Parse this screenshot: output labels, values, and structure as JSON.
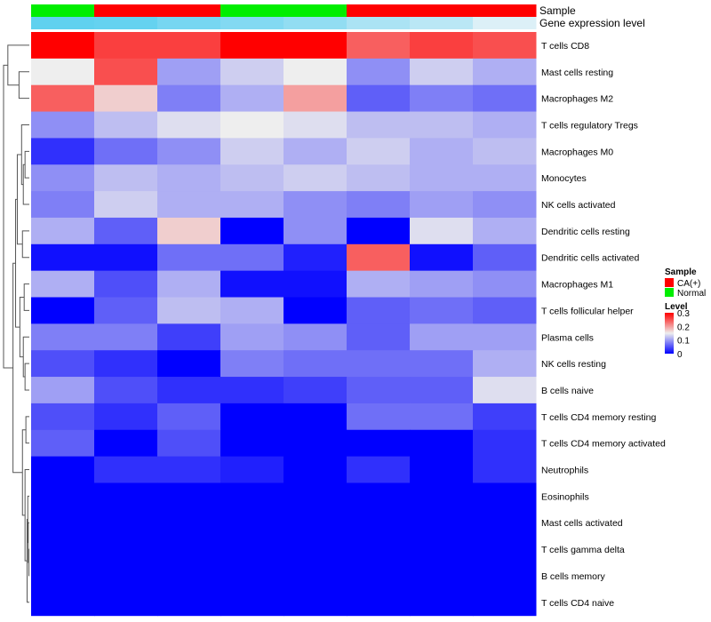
{
  "chart_data": {
    "type": "heatmap",
    "title": "",
    "annotation_tracks": [
      "Sample",
      "Gene expression level"
    ],
    "sample_groups": [
      "Normal",
      "CA(+)",
      "CA(+)",
      "Normal",
      "Normal",
      "CA(+)",
      "CA(+)",
      "CA(+)"
    ],
    "gene_expression_levels": [
      0.95,
      0.92,
      0.8,
      0.72,
      0.62,
      0.45,
      0.35,
      0.12
    ],
    "rows": [
      "T cells CD8",
      "Mast cells resting",
      "Macrophages M2",
      "T cells regulatory  Tregs",
      "Macrophages M0",
      "Monocytes",
      "NK cells activated",
      "Dendritic cells resting",
      "Dendritic cells activated",
      "Macrophages M1",
      "T cells follicular helper",
      "Plasma cells",
      "NK cells resting",
      "B cells naive",
      "T cells CD4 memory resting",
      "T cells CD4 memory activated",
      "Neutrophils",
      "Eosinophils",
      "Mast cells activated",
      "T cells gamma delta",
      "B cells memory",
      "T cells CD4 naive"
    ],
    "values": [
      [
        0.3,
        0.26,
        0.26,
        0.3,
        0.3,
        0.24,
        0.26,
        0.25
      ],
      [
        0.15,
        0.25,
        0.1,
        0.13,
        0.15,
        0.09,
        0.13,
        0.11
      ],
      [
        0.24,
        0.17,
        0.08,
        0.11,
        0.2,
        0.06,
        0.08,
        0.07
      ],
      [
        0.09,
        0.12,
        0.14,
        0.15,
        0.14,
        0.12,
        0.12,
        0.11
      ],
      [
        0.03,
        0.07,
        0.09,
        0.13,
        0.11,
        0.13,
        0.11,
        0.12
      ],
      [
        0.09,
        0.12,
        0.11,
        0.12,
        0.13,
        0.12,
        0.11,
        0.11
      ],
      [
        0.08,
        0.13,
        0.11,
        0.11,
        0.09,
        0.08,
        0.1,
        0.09
      ],
      [
        0.11,
        0.06,
        0.17,
        0.0,
        0.09,
        0.0,
        0.14,
        0.11
      ],
      [
        0.01,
        0.01,
        0.07,
        0.07,
        0.02,
        0.24,
        0.01,
        0.06
      ],
      [
        0.11,
        0.05,
        0.11,
        0.01,
        0.01,
        0.11,
        0.1,
        0.09
      ],
      [
        0.0,
        0.06,
        0.12,
        0.11,
        0.0,
        0.06,
        0.07,
        0.06
      ],
      [
        0.08,
        0.08,
        0.04,
        0.1,
        0.09,
        0.06,
        0.1,
        0.1
      ],
      [
        0.05,
        0.03,
        0.0,
        0.08,
        0.07,
        0.07,
        0.07,
        0.11
      ],
      [
        0.1,
        0.05,
        0.03,
        0.03,
        0.04,
        0.06,
        0.06,
        0.14
      ],
      [
        0.05,
        0.03,
        0.06,
        0.0,
        0.0,
        0.07,
        0.07,
        0.04
      ],
      [
        0.06,
        0.0,
        0.05,
        0.0,
        0.0,
        0.0,
        0.0,
        0.03
      ],
      [
        0.0,
        0.03,
        0.03,
        0.02,
        0.0,
        0.03,
        0.0,
        0.03
      ],
      [
        0.0,
        0.0,
        0.0,
        0.0,
        0.0,
        0.0,
        0.0,
        0.0
      ],
      [
        0.0,
        0.0,
        0.0,
        0.0,
        0.0,
        0.0,
        0.0,
        0.0
      ],
      [
        0.0,
        0.0,
        0.0,
        0.0,
        0.0,
        0.0,
        0.0,
        0.0
      ],
      [
        0.0,
        0.0,
        0.0,
        0.0,
        0.0,
        0.0,
        0.0,
        0.0
      ],
      [
        0.0,
        0.0,
        0.0,
        0.0,
        0.0,
        0.0,
        0.0,
        0.0
      ]
    ],
    "value_range": [
      0,
      0.3
    ],
    "colors": {
      "low": "#0000ff",
      "mid": "#eeeeee",
      "high": "#ff0000",
      "CA(+)": "#ff0000",
      "Normal": "#00ee00",
      "expression_low": "#eef4f8",
      "expression_high": "#59cfef"
    },
    "legend": {
      "sample_title": "Sample",
      "sample_items": [
        "CA(+)",
        "Normal"
      ],
      "level_title": "Level",
      "level_ticks": [
        "0.3",
        "0.2",
        "0.1",
        "0"
      ],
      "level_tick_values": [
        0.3,
        0.2,
        0.1,
        0
      ],
      "placement": "right"
    }
  }
}
